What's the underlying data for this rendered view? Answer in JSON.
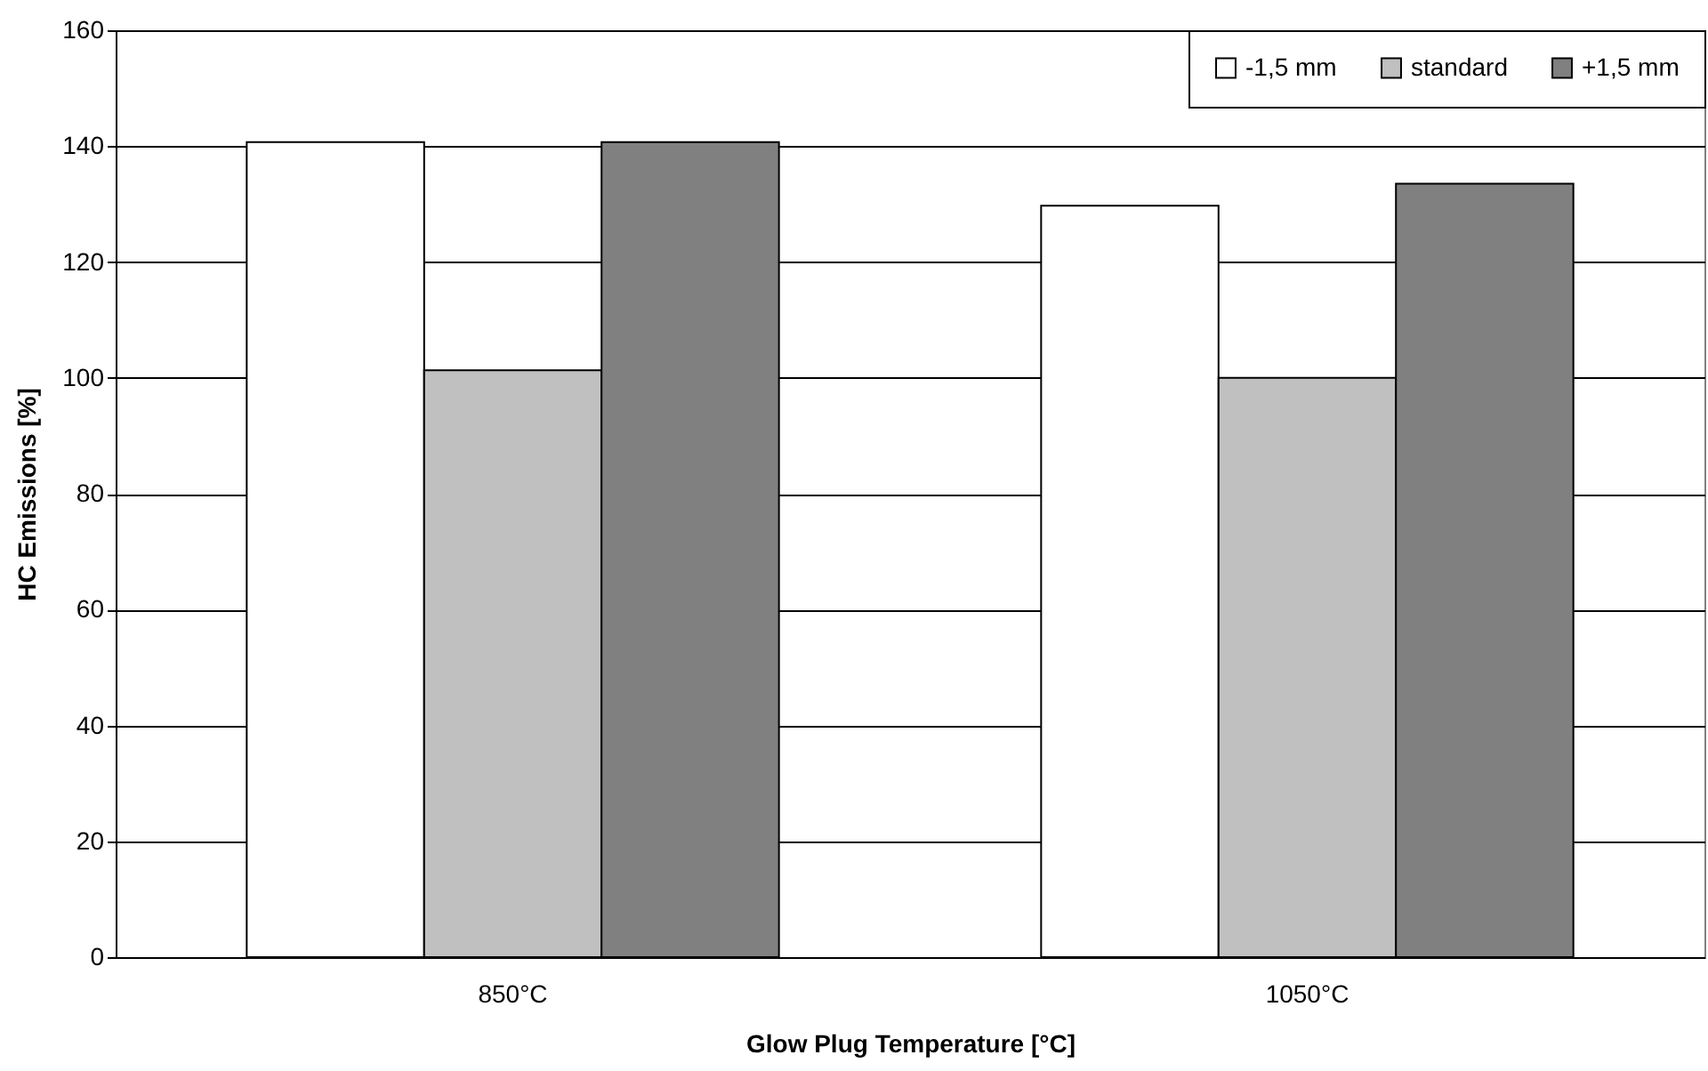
{
  "chart_data": {
    "type": "bar",
    "xlabel": "Glow Plug Temperature [°C]",
    "ylabel": "HC Emissions [%]",
    "categories": [
      "850°C",
      "1050°C"
    ],
    "series": [
      {
        "name": "-1,5 mm",
        "color": "#ffffff",
        "values": [
          140.7,
          129.7
        ]
      },
      {
        "name": "standard",
        "color": "#c0c0c0",
        "values": [
          101.3,
          100
        ]
      },
      {
        "name": "+1,5 mm",
        "color": "#808080",
        "values": [
          140.7,
          133.5
        ]
      }
    ],
    "ylim": [
      0,
      160
    ],
    "yticks": [
      0,
      20,
      40,
      60,
      80,
      100,
      120,
      140,
      160
    ],
    "grid": "y",
    "legend": "top right"
  }
}
